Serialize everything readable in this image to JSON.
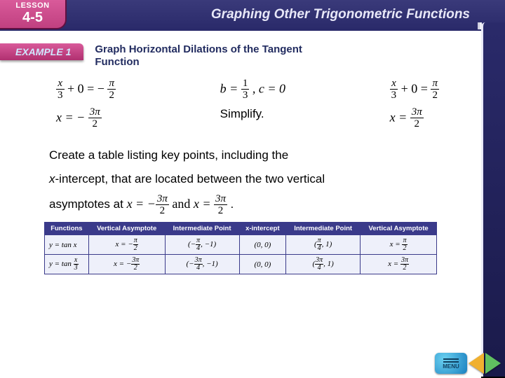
{
  "header": {
    "lesson_label": "LESSON",
    "lesson_number": "4-5",
    "chapter_title": "Graphing Other Trigonometric Functions"
  },
  "example": {
    "tab": "EXAMPLE 1",
    "title": "Graph Horizontal Dilations of the Tangent Function"
  },
  "equations": {
    "left": {
      "line1_lhs_num": "x",
      "line1_lhs_den": "3",
      "line1_plus": " + 0 = −",
      "line1_rhs_num": "π",
      "line1_rhs_den": "2",
      "line2_lhs": "x = −",
      "line2_rhs_num": "3π",
      "line2_rhs_den": "2"
    },
    "mid": {
      "line1": "b = ",
      "b_num": "1",
      "b_den": "3",
      "c_text": ",  c = 0",
      "line2": "Simplify."
    },
    "right": {
      "line1_lhs_num": "x",
      "line1_lhs_den": "3",
      "line1_plus": " + 0 = ",
      "line1_rhs_num": "π",
      "line1_rhs_den": "2",
      "line2_lhs": "x = ",
      "line2_rhs_num": "3π",
      "line2_rhs_den": "2"
    }
  },
  "body": {
    "l1": "Create a table listing key points, including the",
    "l2_pre": "x",
    "l2_post": "-intercept, that are located between the two vertical",
    "l3_pre": "asymptotes at ",
    "l3_math_x1": "x = −",
    "l3_x1_num": "3π",
    "l3_x1_den": "2",
    "l3_and": " and ",
    "l3_math_x2": "x = ",
    "l3_x2_num": "3π",
    "l3_x2_den": "2",
    "l3_end": "."
  },
  "table": {
    "headers": [
      "Functions",
      "Vertical Asymptote",
      "Intermediate Point",
      "x-intercept",
      "Intermediate Point",
      "Vertical Asymptote"
    ],
    "rows": [
      {
        "fn": "y = tan x",
        "va1": {
          "pre": "x = −",
          "num": "π",
          "den": "2"
        },
        "ip1": {
          "pre": "(−",
          "num": "π",
          "den": "4",
          "post": ", −1)"
        },
        "xi": "(0, 0)",
        "ip2": {
          "pre": "(",
          "num": "π",
          "den": "4",
          "post": ", 1)"
        },
        "va2": {
          "pre": "x = ",
          "num": "π",
          "den": "2"
        }
      },
      {
        "fn": "y = tan (x/3)",
        "fn_pre": "y = tan ",
        "fn_num": "x",
        "fn_den": "3",
        "va1": {
          "pre": "x = −",
          "num": "3π",
          "den": "2"
        },
        "ip1": {
          "pre": "(−",
          "num": "3π",
          "den": "4",
          "post": ", −1)"
        },
        "xi": "(0, 0)",
        "ip2": {
          "pre": "(",
          "num": "3π",
          "den": "4",
          "post": ", 1)"
        },
        "va2": {
          "pre": "x = ",
          "num": "3π",
          "den": "2"
        }
      }
    ]
  },
  "nav": {
    "menu": "MENU"
  },
  "colors": {
    "header_bg": "#2a2a6a",
    "tab_bg": "#c04080",
    "table_header_bg": "#3a3a8a",
    "table_cell_bg": "#eef0fa",
    "prev_btn": "#f0b030",
    "next_btn": "#60c060",
    "menu_btn": "#1a80c0"
  }
}
